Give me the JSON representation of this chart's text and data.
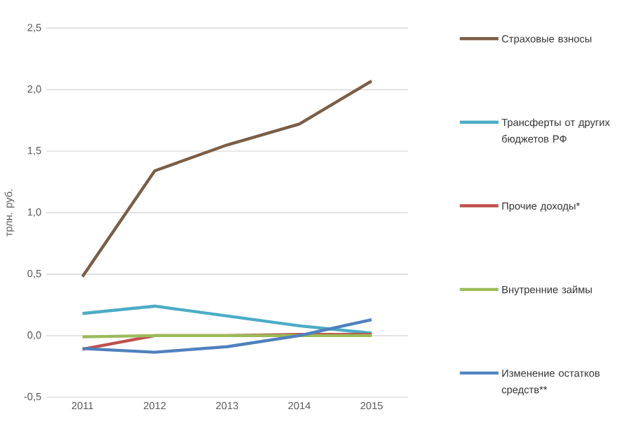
{
  "chart_data": {
    "type": "line",
    "ylabel": "трлн. руб.",
    "categories": [
      "2011",
      "2012",
      "2013",
      "2014",
      "2015"
    ],
    "series": [
      {
        "name": "Страховые взносы",
        "color": "#7b5e47",
        "values": [
          0.48,
          1.34,
          1.55,
          1.72,
          2.07
        ]
      },
      {
        "name": "Трансферты от других бюджетов РФ",
        "color": "#4bacc6",
        "values": [
          0.18,
          0.24,
          0.16,
          0.08,
          0.02
        ]
      },
      {
        "name": "Прочие доходы*",
        "color": "#c0504d",
        "values": [
          -0.11,
          0.0,
          0.0,
          0.01,
          0.01
        ]
      },
      {
        "name": "Внутренние займы",
        "color": "#9bbb59",
        "values": [
          -0.01,
          0.0,
          0.0,
          0.0,
          0.0
        ]
      },
      {
        "name": "Изменение остатков средств**",
        "color": "#4f81bd",
        "values": [
          -0.105,
          -0.135,
          -0.09,
          0.0,
          0.13
        ]
      }
    ],
    "ylim": [
      -0.5,
      2.5
    ],
    "yticks": [
      {
        "value": -0.5,
        "label": "-0,5"
      },
      {
        "value": 0,
        "label": "0,0"
      },
      {
        "value": 0.5,
        "label": "0,5"
      },
      {
        "value": 1,
        "label": "1,0"
      },
      {
        "value": 1.5,
        "label": "1,5"
      },
      {
        "value": 2,
        "label": "2,0"
      },
      {
        "value": 2.5,
        "label": "2,5"
      }
    ],
    "grid": "y",
    "legend": "right",
    "marker": "none",
    "line_style": "solid"
  }
}
